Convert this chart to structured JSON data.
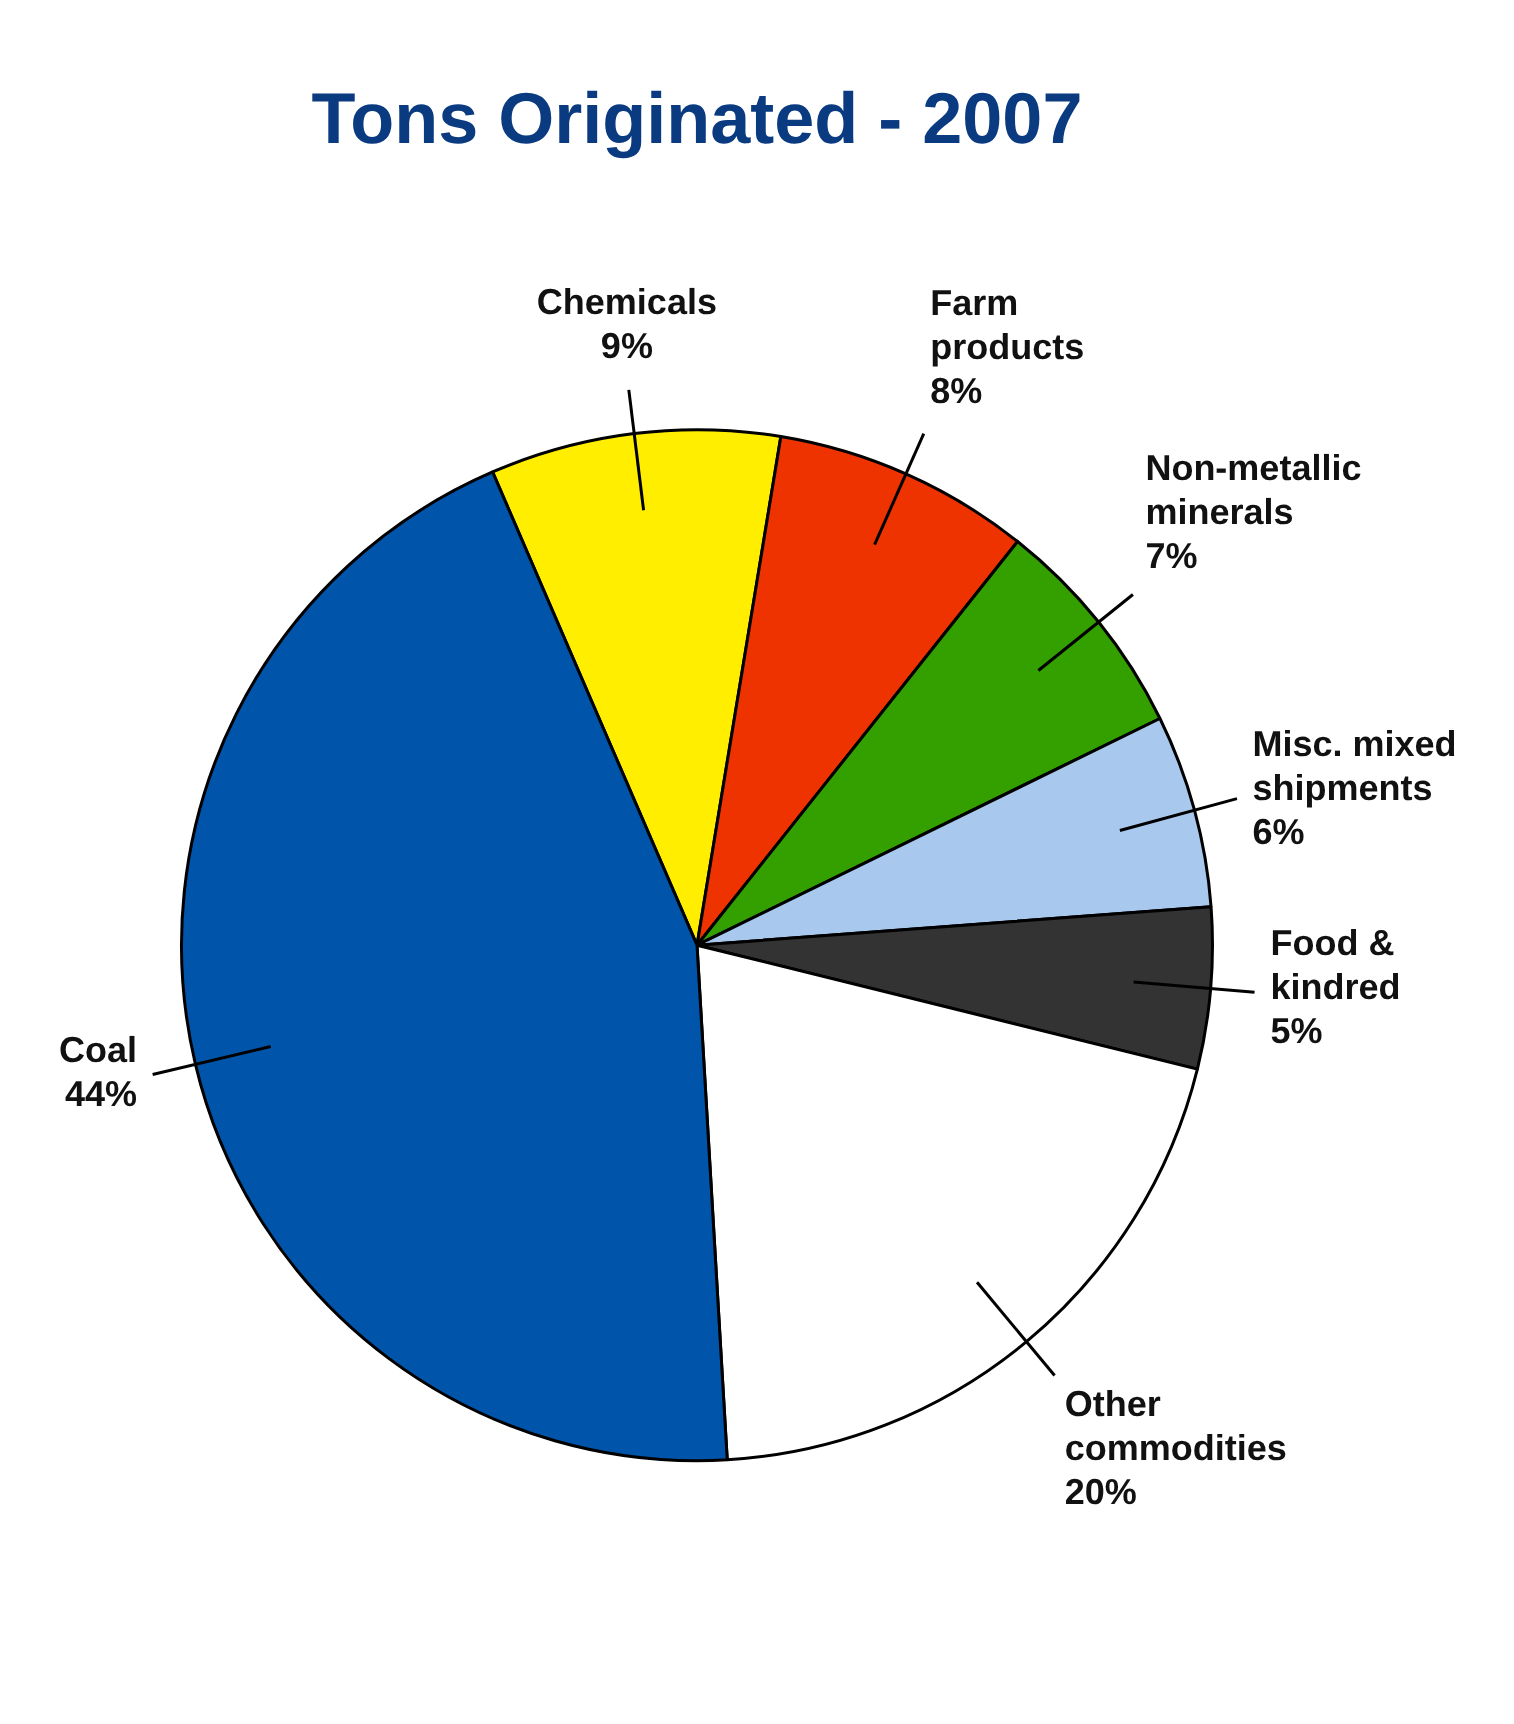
{
  "chart_data": {
    "type": "pie",
    "title": "Tons Originated - 2007",
    "categories": [
      "Chemicals",
      "Farm products",
      "Non-metallic minerals",
      "Misc. mixed shipments",
      "Food & kindred",
      "Other commodities",
      "Coal"
    ],
    "values": [
      9,
      8,
      7,
      6,
      5,
      20,
      44
    ],
    "value_labels": [
      "9%",
      "8%",
      "7%",
      "6%",
      "5%",
      "20%",
      "44%"
    ],
    "colors": [
      "#ffee00",
      "#ee3300",
      "#33a000",
      "#a9c8ee",
      "#333333",
      "#ffffff",
      "#0055aa"
    ],
    "legend": false
  }
}
